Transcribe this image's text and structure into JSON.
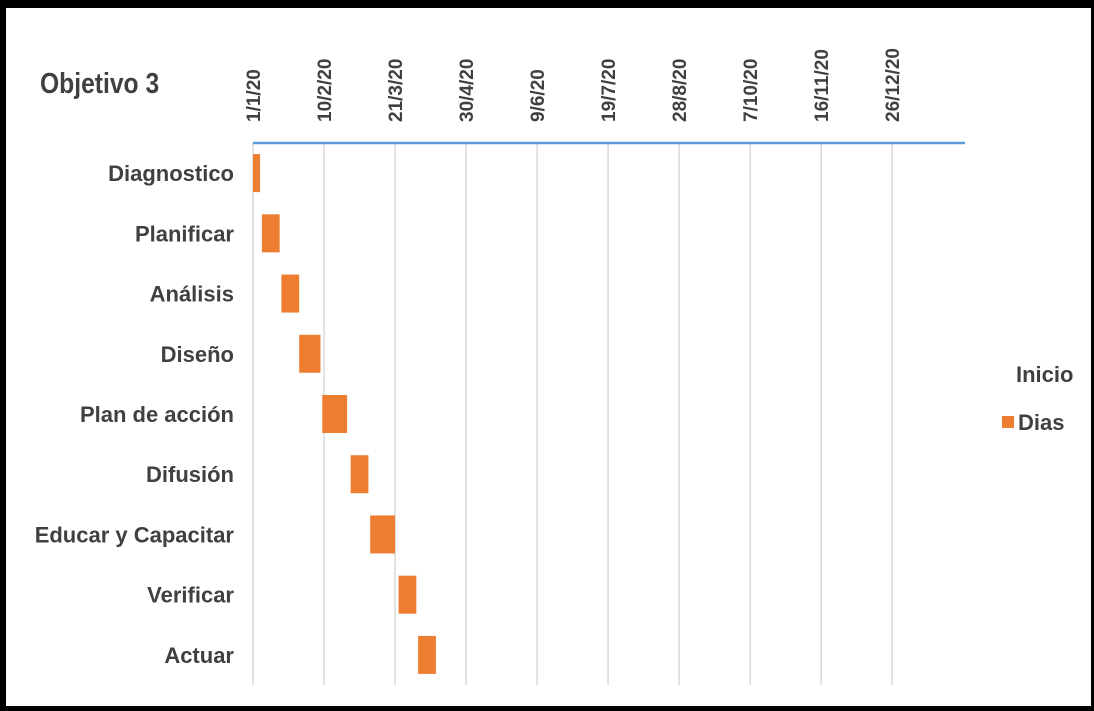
{
  "chart_data": {
    "type": "bar",
    "subtype": "gantt-stacked-horizontal",
    "title": "Objetivo 3",
    "x_axis_position": "top",
    "x_ticks": [
      "1/1/20",
      "10/2/20",
      "21/3/20",
      "30/4/20",
      "9/6/20",
      "19/7/20",
      "28/8/20",
      "7/10/20",
      "16/11/20",
      "26/12/20"
    ],
    "xlim": [
      "1/1/20",
      "5/2/21"
    ],
    "categories": [
      "Diagnostico",
      "Planificar",
      "Análisis",
      "Diseño",
      "Plan de acción",
      "Difusión",
      "Educar y Capacitar",
      "Verificar",
      "Actuar"
    ],
    "series": [
      {
        "name": "Inicio",
        "visible": false,
        "values": [
          "1/1/20",
          "6/1/20",
          "17/1/20",
          "27/1/20",
          "9/2/20",
          "25/2/20",
          "7/3/20",
          "23/3/20",
          "3/4/20"
        ]
      },
      {
        "name": "Dias",
        "color": "#ED7D31",
        "values": [
          4,
          10,
          10,
          12,
          14,
          10,
          14,
          10,
          10
        ]
      }
    ],
    "legend": {
      "position": "right",
      "title": "Inicio",
      "entries": [
        "Dias"
      ]
    },
    "grid": {
      "vertical": true,
      "horizontal": false
    },
    "colors": {
      "bar": "#ED7D31",
      "axis": "#5B9BD5",
      "grid": "#D9D9D9",
      "text": "#404040"
    }
  }
}
